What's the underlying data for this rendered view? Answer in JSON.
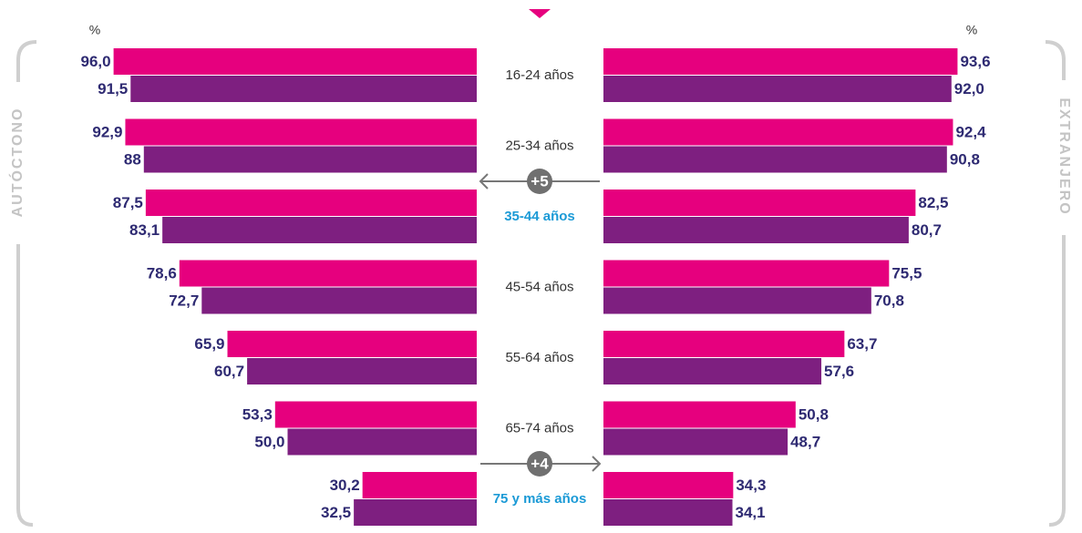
{
  "chart_data": {
    "type": "butterfly-bar",
    "categories": [
      "16-24 años",
      "25-34 años",
      "35-44 años",
      "45-54 años",
      "55-64 años",
      "65-74 años",
      "75 y más años"
    ],
    "xlim": [
      0,
      100
    ],
    "annotations": [
      null,
      null,
      {
        "text": "+5",
        "direction": "left"
      },
      null,
      null,
      null,
      {
        "text": "+4",
        "direction": "right"
      }
    ],
    "panels": [
      {
        "title": "AUTÓCTONO",
        "unit": "%",
        "side": "left",
        "series": [
          {
            "color": "#e6007e",
            "values": [
              96.0,
              92.9,
              87.5,
              78.6,
              65.9,
              53.3,
              30.2
            ],
            "value_labels": [
              "96,0",
              "92,9",
              "87,5",
              "78,6",
              "65,9",
              "53,3",
              "30,2"
            ]
          },
          {
            "color": "#7e1f80",
            "values": [
              91.5,
              88,
              83.1,
              72.7,
              60.7,
              50.0,
              32.5
            ],
            "value_labels": [
              "91,5",
              "88",
              "83,1",
              "72,7",
              "60,7",
              "50,0",
              "32,5"
            ]
          }
        ]
      },
      {
        "title": "EXTRANJERO",
        "unit": "%",
        "side": "right",
        "series": [
          {
            "color": "#e6007e",
            "values": [
              93.6,
              92.4,
              82.5,
              75.5,
              63.7,
              50.8,
              34.3
            ],
            "value_labels": [
              "93,6",
              "92,4",
              "82,5",
              "75,5",
              "63,7",
              "50,8",
              "34,3"
            ]
          },
          {
            "color": "#7e1f80",
            "values": [
              92.0,
              90.8,
              80.7,
              70.8,
              57.6,
              48.7,
              34.1
            ],
            "value_labels": [
              "92,0",
              "90,8",
              "80,7",
              "70,8",
              "57,6",
              "48,7",
              "34,1"
            ]
          }
        ]
      }
    ]
  }
}
